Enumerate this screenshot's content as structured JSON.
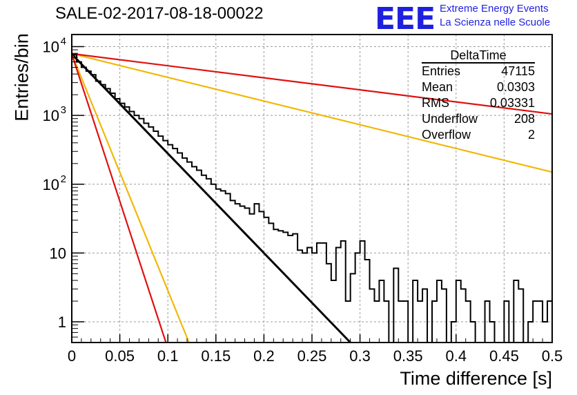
{
  "chart_data": {
    "type": "histogram",
    "title": "SALE-02-2017-08-18-00022",
    "xlabel": "Time difference [s]",
    "ylabel": "Entries/bin",
    "xlim": [
      0,
      0.5
    ],
    "ylim": [
      0.5,
      15000
    ],
    "yscale": "log",
    "grid": true,
    "x_ticks": [
      "0",
      "0.05",
      "0.1",
      "0.15",
      "0.2",
      "0.25",
      "0.3",
      "0.35",
      "0.4",
      "0.45",
      "0.5"
    ],
    "y_ticks": [
      {
        "value": 1,
        "label": "1"
      },
      {
        "value": 10,
        "label": "10"
      },
      {
        "value": 100,
        "label": "10",
        "exp": "2"
      },
      {
        "value": 1000,
        "label": "10",
        "exp": "3"
      },
      {
        "value": 10000,
        "label": "10",
        "exp": "4"
      }
    ],
    "bin_width": 0.005,
    "histogram": [
      7600,
      6000,
      5000,
      4400,
      3900,
      3150,
      2800,
      2450,
      2100,
      1750,
      1500,
      1330,
      1140,
      1000,
      900,
      770,
      680,
      590,
      500,
      430,
      375,
      330,
      285,
      240,
      210,
      180,
      160,
      135,
      120,
      100,
      85,
      80,
      73,
      58,
      52,
      48,
      45,
      37,
      52,
      40,
      33,
      27,
      22,
      21,
      20,
      18,
      19,
      11,
      10,
      12,
      10,
      14,
      14,
      7,
      4,
      12,
      15,
      2,
      5,
      10,
      15,
      8,
      3,
      2,
      4,
      2,
      0,
      6,
      2,
      2,
      0,
      4,
      2,
      3,
      0,
      2,
      4,
      3,
      0,
      1,
      4,
      3,
      2,
      1,
      0,
      0,
      2,
      1,
      0,
      0,
      2,
      0,
      4,
      3,
      0,
      1,
      2,
      2,
      1,
      2
    ],
    "fits": [
      {
        "y0": 7800,
        "y1": 0.5,
        "x1": 0.29,
        "color": "#000000"
      },
      {
        "y0": 7800,
        "y1": 0.5,
        "x1": 0.122,
        "color": "#f2b705"
      },
      {
        "y0": 7800,
        "y1": 0.5,
        "x1": 0.098,
        "color": "#e01010"
      },
      {
        "y0": 7900,
        "y1": 150,
        "x1": 0.5,
        "color": "#f2b705"
      },
      {
        "y0": 7900,
        "y1": 1050,
        "x1": 0.5,
        "color": "#e01010"
      }
    ]
  },
  "stats": {
    "title": "DeltaTime",
    "rows": [
      {
        "label": "Entries",
        "value": "47115"
      },
      {
        "label": "Mean",
        "value": "0.0303"
      },
      {
        "label": "RMS",
        "value": "0.03331"
      },
      {
        "label": "Underflow",
        "value": "208"
      },
      {
        "label": "Overflow",
        "value": "2"
      }
    ]
  },
  "logo": {
    "mark": "EEE",
    "line1": "Extreme Energy Events",
    "line2": "La Scienza nelle Scuole",
    "color": "#1f1fe0"
  }
}
